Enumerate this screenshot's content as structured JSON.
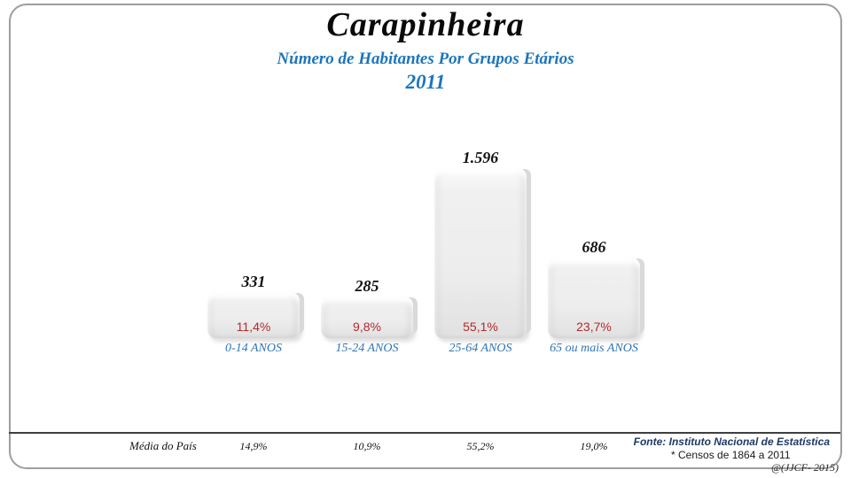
{
  "chart_data": {
    "type": "bar",
    "title": "Carapinheira",
    "subtitle": "Número de Habitantes Por Grupos Etários",
    "year": "2011",
    "categories": [
      "0-14 ANOS",
      "15-24 ANOS",
      "25-64 ANOS",
      "65 ou mais ANOS"
    ],
    "values": [
      331,
      285,
      1596,
      686
    ],
    "value_labels": [
      "331",
      "285",
      "1.596",
      "686"
    ],
    "percent_of_total": [
      "11,4%",
      "9,8%",
      "55,1%",
      "23,7%"
    ],
    "country_average": {
      "label": "Média do País",
      "values": [
        "14,9%",
        "10,9%",
        "55,2%",
        "19,0%"
      ]
    },
    "xlabel": "",
    "ylabel": "",
    "grid": false,
    "legend": "none",
    "bar_color": "#ececec"
  },
  "footer": {
    "source": "Fonte: Instituto Nacional de Estatística",
    "note": "* Censos de 1864 a 2011",
    "credit": "@(JJCF- 2015)"
  },
  "colors": {
    "subtitle_blue": "#1c75bc",
    "category_blue": "#2e75b6",
    "percent_red": "#b22a2e",
    "source_navy": "#1f3864"
  }
}
